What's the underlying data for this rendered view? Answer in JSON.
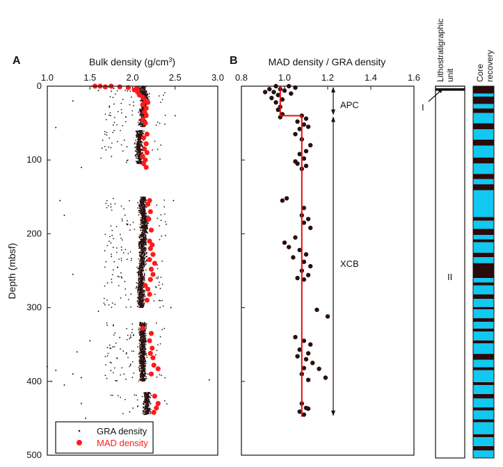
{
  "figure": {
    "panel_a_letter": "A",
    "panel_b_letter": "B",
    "depth_axis_label": "Depth (mbsf)",
    "lith_header": "Lithostratigraphic unit",
    "lith_header_line1": "Lithostratigraphic",
    "lith_header_line2": "unit",
    "core_header_line1": "Core",
    "core_header_line2": "recovery",
    "lith_unit_I": "I",
    "lith_unit_II": "II",
    "colors": {
      "gra": "#2a1010",
      "mad": "#ff1a1a",
      "mad_b": "#2a0f0f",
      "trend": "#e01010",
      "recovered": "#2a0a0a",
      "not_recovered": "#10c8f0"
    }
  },
  "chart_data": [
    {
      "type": "scatter",
      "panel": "A",
      "title_main": "Bulk density (g/cm",
      "title_sup": "3",
      "title_end": ")",
      "xlim": [
        1.0,
        3.0
      ],
      "ylim": [
        500,
        0
      ],
      "x_ticks": [
        "1.0",
        "1.5",
        "2.0",
        "2.5",
        "3.0"
      ],
      "y_ticks": [
        "0",
        "100",
        "200",
        "300",
        "400",
        "500"
      ],
      "legend": {
        "placement": "bottom",
        "gra_label": "GRA density",
        "mad_label": "MAD density"
      },
      "gra_density": {
        "intervals": [
          [
            0,
            10,
            2.12
          ],
          [
            10,
            30,
            2.14
          ],
          [
            30,
            55,
            2.12
          ],
          [
            60,
            105,
            2.08
          ],
          [
            150,
            175,
            2.12
          ],
          [
            175,
            200,
            2.14
          ],
          [
            200,
            245,
            2.12
          ],
          [
            245,
            300,
            2.1
          ],
          [
            320,
            400,
            2.12
          ],
          [
            415,
            445,
            2.17
          ]
        ],
        "sparse": [
          [
            1.52,
            0
          ],
          [
            1.72,
            1
          ],
          [
            1.78,
            3
          ],
          [
            1.6,
            6
          ],
          [
            1.3,
            20
          ],
          [
            1.1,
            56
          ],
          [
            1.4,
            110
          ],
          [
            1.15,
            155
          ],
          [
            1.2,
            175
          ],
          [
            1.0,
            380
          ],
          [
            1.1,
            385
          ],
          [
            1.3,
            390
          ],
          [
            1.4,
            395
          ],
          [
            1.05,
            400
          ],
          [
            1.2,
            405
          ],
          [
            1.4,
            430
          ],
          [
            1.45,
            450
          ],
          [
            2.5,
            40
          ],
          [
            2.48,
            155
          ],
          [
            2.45,
            300
          ],
          [
            2.9,
            398
          ],
          [
            1.3,
            255
          ],
          [
            1.6,
            305
          ],
          [
            1.5,
            345
          ],
          [
            1.35,
            360
          ]
        ]
      },
      "mad_density": [
        [
          1.56,
          0
        ],
        [
          1.62,
          0
        ],
        [
          1.68,
          1
        ],
        [
          1.75,
          0
        ],
        [
          1.85,
          1
        ],
        [
          1.95,
          2
        ],
        [
          2.05,
          3
        ],
        [
          2.02,
          5
        ],
        [
          2.06,
          8
        ],
        [
          2.08,
          12
        ],
        [
          2.12,
          15
        ],
        [
          2.15,
          20
        ],
        [
          2.18,
          22
        ],
        [
          2.12,
          25
        ],
        [
          2.16,
          30
        ],
        [
          2.14,
          35
        ],
        [
          2.16,
          40
        ],
        [
          2.12,
          45
        ],
        [
          2.15,
          50
        ],
        [
          2.17,
          65
        ],
        [
          2.13,
          70
        ],
        [
          2.16,
          78
        ],
        [
          2.14,
          85
        ],
        [
          2.17,
          90
        ],
        [
          2.12,
          95
        ],
        [
          2.15,
          100
        ],
        [
          2.13,
          105
        ],
        [
          2.16,
          110
        ],
        [
          2.2,
          155
        ],
        [
          2.18,
          160
        ],
        [
          2.21,
          170
        ],
        [
          2.19,
          180
        ],
        [
          2.22,
          195
        ],
        [
          2.2,
          210
        ],
        [
          2.23,
          215
        ],
        [
          2.21,
          220
        ],
        [
          2.24,
          228
        ],
        [
          2.2,
          235
        ],
        [
          2.26,
          240
        ],
        [
          2.22,
          248
        ],
        [
          2.24,
          255
        ],
        [
          2.21,
          262
        ],
        [
          2.15,
          270
        ],
        [
          2.18,
          275
        ],
        [
          2.2,
          282
        ],
        [
          2.17,
          290
        ],
        [
          2.12,
          328
        ],
        [
          2.22,
          335
        ],
        [
          2.2,
          345
        ],
        [
          2.23,
          355
        ],
        [
          2.21,
          362
        ],
        [
          2.24,
          368
        ],
        [
          2.25,
          378
        ],
        [
          2.3,
          383
        ],
        [
          2.22,
          390
        ],
        [
          2.26,
          420
        ],
        [
          2.3,
          430
        ],
        [
          2.28,
          436
        ],
        [
          2.25,
          442
        ]
      ]
    },
    {
      "type": "scatter",
      "panel": "B",
      "title": "MAD density / GRA density",
      "xlim": [
        0.8,
        1.6
      ],
      "ylim": [
        500,
        0
      ],
      "x_ticks": [
        "0.8",
        "1.0",
        "1.2",
        "1.4",
        "1.6"
      ],
      "ratio_points": [
        [
          0.96,
          0
        ],
        [
          1.02,
          0
        ],
        [
          0.93,
          4
        ],
        [
          0.98,
          4
        ],
        [
          1.05,
          2
        ],
        [
          0.91,
          8
        ],
        [
          0.95,
          8
        ],
        [
          1.0,
          6
        ],
        [
          0.97,
          12
        ],
        [
          0.94,
          16
        ],
        [
          0.99,
          18
        ],
        [
          0.96,
          22
        ],
        [
          1.03,
          10
        ],
        [
          0.98,
          28
        ],
        [
          0.97,
          32
        ],
        [
          0.99,
          38
        ],
        [
          0.98,
          42
        ],
        [
          1.08,
          40
        ],
        [
          1.1,
          44
        ],
        [
          1.06,
          48
        ],
        [
          1.09,
          52
        ],
        [
          1.07,
          58
        ],
        [
          1.11,
          55
        ],
        [
          1.05,
          65
        ],
        [
          1.08,
          72
        ],
        [
          1.12,
          80
        ],
        [
          1.1,
          88
        ],
        [
          1.07,
          92
        ],
        [
          1.09,
          98
        ],
        [
          1.05,
          102
        ],
        [
          1.1,
          108
        ],
        [
          1.08,
          112
        ],
        [
          1.06,
          105
        ],
        [
          0.99,
          155
        ],
        [
          1.01,
          152
        ],
        [
          1.09,
          165
        ],
        [
          1.08,
          175
        ],
        [
          1.11,
          180
        ],
        [
          1.09,
          185
        ],
        [
          1.12,
          192
        ],
        [
          1.05,
          205
        ],
        [
          1.0,
          212
        ],
        [
          1.02,
          218
        ],
        [
          1.07,
          222
        ],
        [
          1.1,
          228
        ],
        [
          1.04,
          232
        ],
        [
          1.09,
          238
        ],
        [
          1.12,
          244
        ],
        [
          1.08,
          250
        ],
        [
          1.11,
          256
        ],
        [
          1.06,
          260
        ],
        [
          1.09,
          262
        ],
        [
          1.15,
          303
        ],
        [
          1.2,
          312
        ],
        [
          1.05,
          340
        ],
        [
          1.09,
          345
        ],
        [
          1.12,
          350
        ],
        [
          1.07,
          357
        ],
        [
          1.11,
          362
        ],
        [
          1.06,
          366
        ],
        [
          1.1,
          370
        ],
        [
          1.13,
          375
        ],
        [
          1.09,
          382
        ],
        [
          1.16,
          383
        ],
        [
          1.08,
          390
        ],
        [
          1.19,
          395
        ],
        [
          1.11,
          398
        ],
        [
          1.08,
          430
        ],
        [
          1.1,
          436
        ],
        [
          1.07,
          441
        ],
        [
          1.11,
          437
        ],
        [
          1.09,
          445
        ]
      ],
      "trend_line": [
        [
          0.98,
          0
        ],
        [
          0.98,
          40
        ],
        [
          1.08,
          40
        ],
        [
          1.08,
          448
        ]
      ],
      "annotations": {
        "apc_label": "APC",
        "xcb_label": "XCB",
        "apc_range": [
          0,
          40
        ],
        "xcb_range": [
          40,
          448
        ]
      }
    }
  ],
  "core_recovery": [
    [
      0,
      10,
      "rec"
    ],
    [
      10,
      14,
      "gap"
    ],
    [
      14,
      24,
      "rec"
    ],
    [
      24,
      30,
      "gap"
    ],
    [
      30,
      36,
      "rec"
    ],
    [
      36,
      50,
      "gap"
    ],
    [
      50,
      58,
      "rec"
    ],
    [
      58,
      72,
      "gap"
    ],
    [
      72,
      80,
      "rec"
    ],
    [
      80,
      96,
      "gap"
    ],
    [
      96,
      104,
      "rec"
    ],
    [
      104,
      118,
      "gap"
    ],
    [
      118,
      125,
      "rec"
    ],
    [
      125,
      132,
      "gap"
    ],
    [
      132,
      140,
      "rec"
    ],
    [
      140,
      176,
      "gap"
    ],
    [
      176,
      181,
      "rec"
    ],
    [
      181,
      192,
      "gap"
    ],
    [
      192,
      200,
      "rec"
    ],
    [
      200,
      206,
      "gap"
    ],
    [
      206,
      210,
      "rec"
    ],
    [
      210,
      224,
      "gap"
    ],
    [
      224,
      230,
      "rec"
    ],
    [
      230,
      238,
      "gap"
    ],
    [
      238,
      258,
      "rec"
    ],
    [
      258,
      264,
      "gap"
    ],
    [
      264,
      268,
      "rec"
    ],
    [
      268,
      280,
      "gap"
    ],
    [
      280,
      286,
      "rec"
    ],
    [
      286,
      297,
      "gap"
    ],
    [
      297,
      300,
      "rec"
    ],
    [
      300,
      312,
      "gap"
    ],
    [
      312,
      317,
      "rec"
    ],
    [
      317,
      326,
      "gap"
    ],
    [
      326,
      330,
      "rec"
    ],
    [
      330,
      342,
      "gap"
    ],
    [
      342,
      346,
      "rec"
    ],
    [
      346,
      360,
      "gap"
    ],
    [
      360,
      368,
      "rec"
    ],
    [
      368,
      378,
      "gap"
    ],
    [
      378,
      382,
      "rec"
    ],
    [
      382,
      398,
      "gap"
    ],
    [
      398,
      402,
      "rec"
    ],
    [
      402,
      414,
      "gap"
    ],
    [
      414,
      420,
      "rec"
    ],
    [
      420,
      432,
      "gap"
    ],
    [
      432,
      436,
      "rec"
    ],
    [
      436,
      448,
      "gap"
    ],
    [
      448,
      452,
      "rec"
    ],
    [
      452,
      468,
      "gap"
    ],
    [
      468,
      472,
      "rec"
    ],
    [
      472,
      484,
      "gap"
    ],
    [
      484,
      490,
      "rec"
    ],
    [
      490,
      500,
      "gap"
    ]
  ]
}
